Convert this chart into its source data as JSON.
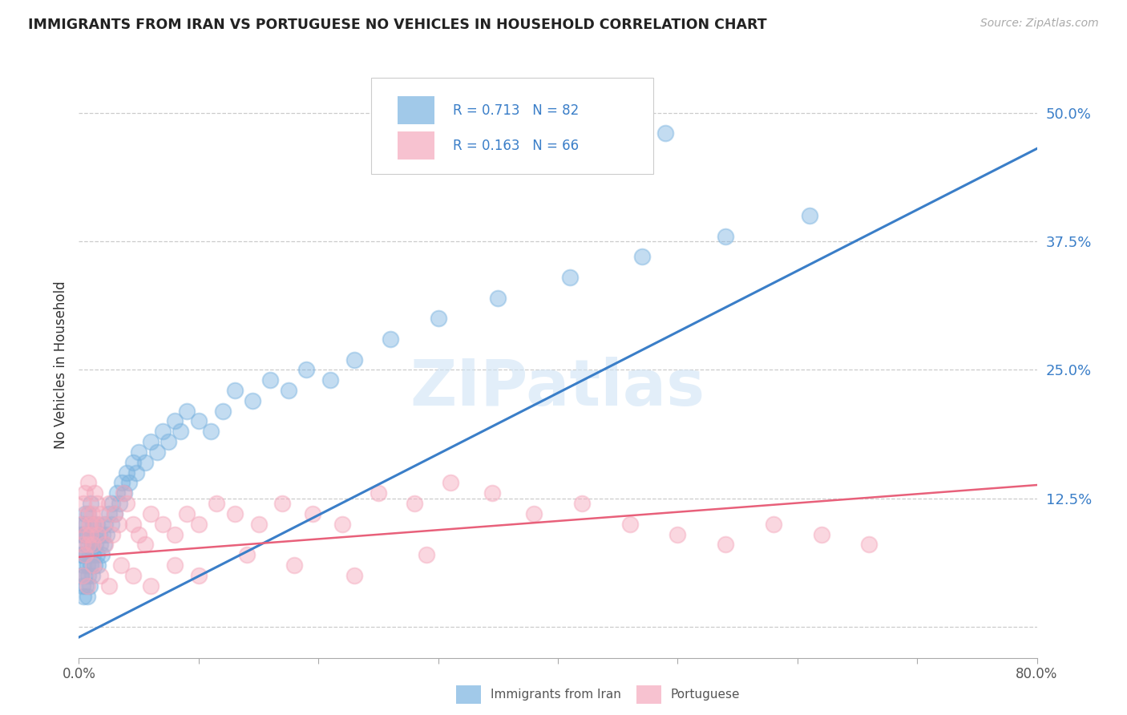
{
  "title": "IMMIGRANTS FROM IRAN VS PORTUGUESE NO VEHICLES IN HOUSEHOLD CORRELATION CHART",
  "source": "Source: ZipAtlas.com",
  "ylabel": "No Vehicles in Household",
  "xlim": [
    0.0,
    0.8
  ],
  "ylim": [
    -0.03,
    0.54
  ],
  "yticks_right": [
    0.0,
    0.125,
    0.25,
    0.375,
    0.5
  ],
  "yticklabels_right": [
    "",
    "12.5%",
    "25.0%",
    "37.5%",
    "50.0%"
  ],
  "blue_color": "#7ab3e0",
  "pink_color": "#f4a8bc",
  "blue_line_color": "#3a7ec8",
  "pink_line_color": "#e8607a",
  "watermark": "ZIPatlas",
  "legend_r1": "R = 0.713",
  "legend_n1": "N = 82",
  "legend_r2": "R = 0.163",
  "legend_n2": "N = 66",
  "series1_label": "Immigrants from Iran",
  "series2_label": "Portuguese",
  "blue_line_y_start": -0.01,
  "blue_line_y_end": 0.465,
  "pink_line_y_start": 0.068,
  "pink_line_y_end": 0.138,
  "blue_scatter_x": [
    0.001,
    0.002,
    0.002,
    0.003,
    0.003,
    0.003,
    0.004,
    0.004,
    0.004,
    0.005,
    0.005,
    0.005,
    0.006,
    0.006,
    0.006,
    0.007,
    0.007,
    0.007,
    0.008,
    0.008,
    0.008,
    0.009,
    0.009,
    0.01,
    0.01,
    0.01,
    0.011,
    0.011,
    0.012,
    0.012,
    0.013,
    0.013,
    0.014,
    0.015,
    0.015,
    0.016,
    0.017,
    0.018,
    0.019,
    0.02,
    0.021,
    0.022,
    0.023,
    0.025,
    0.027,
    0.028,
    0.03,
    0.032,
    0.034,
    0.036,
    0.038,
    0.04,
    0.042,
    0.045,
    0.048,
    0.05,
    0.055,
    0.06,
    0.065,
    0.07,
    0.075,
    0.08,
    0.085,
    0.09,
    0.1,
    0.11,
    0.12,
    0.13,
    0.145,
    0.16,
    0.175,
    0.19,
    0.21,
    0.23,
    0.26,
    0.3,
    0.35,
    0.41,
    0.47,
    0.54,
    0.61,
    0.49
  ],
  "blue_scatter_y": [
    0.07,
    0.05,
    0.09,
    0.04,
    0.07,
    0.1,
    0.03,
    0.06,
    0.09,
    0.05,
    0.08,
    0.11,
    0.04,
    0.07,
    0.1,
    0.03,
    0.06,
    0.09,
    0.05,
    0.08,
    0.11,
    0.04,
    0.07,
    0.06,
    0.09,
    0.12,
    0.05,
    0.08,
    0.07,
    0.1,
    0.06,
    0.09,
    0.08,
    0.07,
    0.1,
    0.06,
    0.09,
    0.08,
    0.07,
    0.09,
    0.08,
    0.1,
    0.09,
    0.11,
    0.1,
    0.12,
    0.11,
    0.13,
    0.12,
    0.14,
    0.13,
    0.15,
    0.14,
    0.16,
    0.15,
    0.17,
    0.16,
    0.18,
    0.17,
    0.19,
    0.18,
    0.2,
    0.19,
    0.21,
    0.2,
    0.19,
    0.21,
    0.23,
    0.22,
    0.24,
    0.23,
    0.25,
    0.24,
    0.26,
    0.28,
    0.3,
    0.32,
    0.34,
    0.36,
    0.38,
    0.4,
    0.48
  ],
  "pink_scatter_x": [
    0.002,
    0.003,
    0.004,
    0.005,
    0.005,
    0.006,
    0.007,
    0.008,
    0.008,
    0.009,
    0.01,
    0.011,
    0.012,
    0.013,
    0.014,
    0.015,
    0.016,
    0.018,
    0.02,
    0.022,
    0.025,
    0.028,
    0.03,
    0.033,
    0.037,
    0.04,
    0.045,
    0.05,
    0.055,
    0.06,
    0.07,
    0.08,
    0.09,
    0.1,
    0.115,
    0.13,
    0.15,
    0.17,
    0.195,
    0.22,
    0.25,
    0.28,
    0.31,
    0.345,
    0.38,
    0.42,
    0.46,
    0.5,
    0.54,
    0.58,
    0.62,
    0.66,
    0.003,
    0.007,
    0.012,
    0.018,
    0.025,
    0.035,
    0.045,
    0.06,
    0.08,
    0.1,
    0.14,
    0.18,
    0.23,
    0.29
  ],
  "pink_scatter_y": [
    0.1,
    0.08,
    0.12,
    0.07,
    0.13,
    0.09,
    0.11,
    0.08,
    0.14,
    0.1,
    0.09,
    0.11,
    0.08,
    0.13,
    0.1,
    0.12,
    0.09,
    0.11,
    0.1,
    0.08,
    0.12,
    0.09,
    0.11,
    0.1,
    0.13,
    0.12,
    0.1,
    0.09,
    0.08,
    0.11,
    0.1,
    0.09,
    0.11,
    0.1,
    0.12,
    0.11,
    0.1,
    0.12,
    0.11,
    0.1,
    0.13,
    0.12,
    0.14,
    0.13,
    0.11,
    0.12,
    0.1,
    0.09,
    0.08,
    0.1,
    0.09,
    0.08,
    0.05,
    0.04,
    0.06,
    0.05,
    0.04,
    0.06,
    0.05,
    0.04,
    0.06,
    0.05,
    0.07,
    0.06,
    0.05,
    0.07
  ]
}
